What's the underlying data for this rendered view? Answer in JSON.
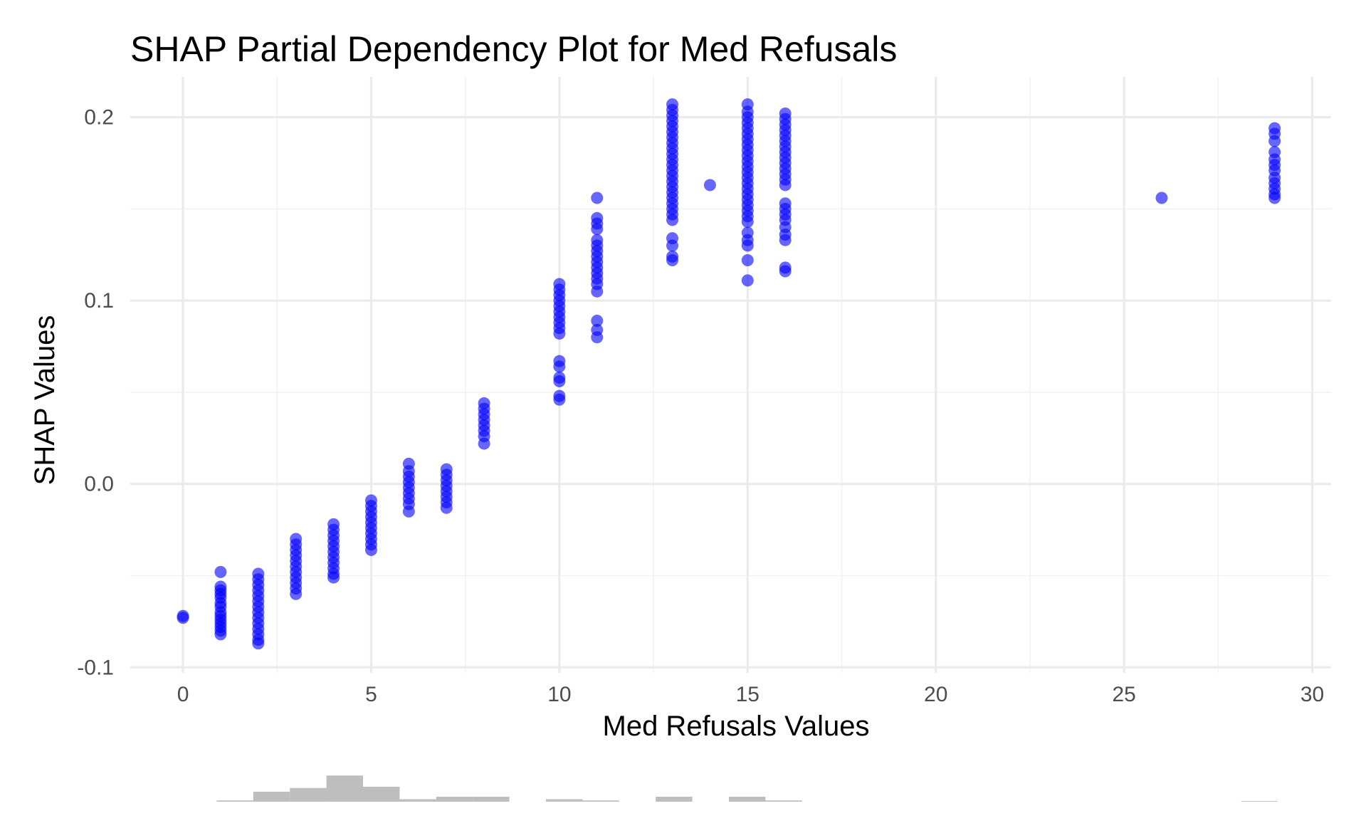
{
  "chart_data": {
    "type": "scatter",
    "title": "SHAP Partial Dependency Plot for Med Refusals",
    "xlabel": "Med Refusals Values",
    "ylabel": "SHAP Values",
    "xlim": [
      -1.4,
      30.5
    ],
    "ylim": [
      -0.103,
      0.222
    ],
    "x_ticks": [
      {
        "value": 0,
        "label": "0"
      },
      {
        "value": 5,
        "label": "5"
      },
      {
        "value": 10,
        "label": "10"
      },
      {
        "value": 15,
        "label": "15"
      },
      {
        "value": 20,
        "label": "20"
      },
      {
        "value": 25,
        "label": "25"
      },
      {
        "value": 30,
        "label": "30"
      }
    ],
    "y_ticks": [
      {
        "value": -0.1,
        "label": "-0.1"
      },
      {
        "value": 0.0,
        "label": "0.0"
      },
      {
        "value": 0.1,
        "label": "0.1"
      },
      {
        "value": 0.2,
        "label": "0.2"
      }
    ],
    "grid": true,
    "point_color": "#0000ff",
    "point_opacity": 0.6,
    "series": [
      {
        "points": [
          {
            "x": 0,
            "y": -0.072
          },
          {
            "x": 0,
            "y": -0.073
          },
          {
            "x": 1,
            "y": -0.048
          },
          {
            "x": 1,
            "y": -0.056
          },
          {
            "x": 1,
            "y": -0.058
          },
          {
            "x": 1,
            "y": -0.06
          },
          {
            "x": 1,
            "y": -0.062
          },
          {
            "x": 1,
            "y": -0.065
          },
          {
            "x": 1,
            "y": -0.067
          },
          {
            "x": 1,
            "y": -0.07
          },
          {
            "x": 1,
            "y": -0.072
          },
          {
            "x": 1,
            "y": -0.074
          },
          {
            "x": 1,
            "y": -0.076
          },
          {
            "x": 1,
            "y": -0.078
          },
          {
            "x": 1,
            "y": -0.08
          },
          {
            "x": 1,
            "y": -0.082
          },
          {
            "x": 2,
            "y": -0.049
          },
          {
            "x": 2,
            "y": -0.052
          },
          {
            "x": 2,
            "y": -0.055
          },
          {
            "x": 2,
            "y": -0.058
          },
          {
            "x": 2,
            "y": -0.061
          },
          {
            "x": 2,
            "y": -0.064
          },
          {
            "x": 2,
            "y": -0.067
          },
          {
            "x": 2,
            "y": -0.07
          },
          {
            "x": 2,
            "y": -0.073
          },
          {
            "x": 2,
            "y": -0.076
          },
          {
            "x": 2,
            "y": -0.079
          },
          {
            "x": 2,
            "y": -0.082
          },
          {
            "x": 2,
            "y": -0.085
          },
          {
            "x": 2,
            "y": -0.087
          },
          {
            "x": 3,
            "y": -0.03
          },
          {
            "x": 3,
            "y": -0.033
          },
          {
            "x": 3,
            "y": -0.036
          },
          {
            "x": 3,
            "y": -0.039
          },
          {
            "x": 3,
            "y": -0.042
          },
          {
            "x": 3,
            "y": -0.045
          },
          {
            "x": 3,
            "y": -0.048
          },
          {
            "x": 3,
            "y": -0.051
          },
          {
            "x": 3,
            "y": -0.054
          },
          {
            "x": 3,
            "y": -0.057
          },
          {
            "x": 3,
            "y": -0.06
          },
          {
            "x": 4,
            "y": -0.022
          },
          {
            "x": 4,
            "y": -0.025
          },
          {
            "x": 4,
            "y": -0.028
          },
          {
            "x": 4,
            "y": -0.031
          },
          {
            "x": 4,
            "y": -0.034
          },
          {
            "x": 4,
            "y": -0.037
          },
          {
            "x": 4,
            "y": -0.04
          },
          {
            "x": 4,
            "y": -0.043
          },
          {
            "x": 4,
            "y": -0.046
          },
          {
            "x": 4,
            "y": -0.049
          },
          {
            "x": 4,
            "y": -0.051
          },
          {
            "x": 5,
            "y": -0.009
          },
          {
            "x": 5,
            "y": -0.012
          },
          {
            "x": 5,
            "y": -0.015
          },
          {
            "x": 5,
            "y": -0.018
          },
          {
            "x": 5,
            "y": -0.021
          },
          {
            "x": 5,
            "y": -0.024
          },
          {
            "x": 5,
            "y": -0.027
          },
          {
            "x": 5,
            "y": -0.03
          },
          {
            "x": 5,
            "y": -0.033
          },
          {
            "x": 5,
            "y": -0.036
          },
          {
            "x": 6,
            "y": 0.011
          },
          {
            "x": 6,
            "y": 0.007
          },
          {
            "x": 6,
            "y": 0.004
          },
          {
            "x": 6,
            "y": 0.001
          },
          {
            "x": 6,
            "y": -0.002
          },
          {
            "x": 6,
            "y": -0.005
          },
          {
            "x": 6,
            "y": -0.008
          },
          {
            "x": 6,
            "y": -0.011
          },
          {
            "x": 6,
            "y": -0.015
          },
          {
            "x": 7,
            "y": 0.008
          },
          {
            "x": 7,
            "y": 0.005
          },
          {
            "x": 7,
            "y": 0.002
          },
          {
            "x": 7,
            "y": -0.001
          },
          {
            "x": 7,
            "y": -0.004
          },
          {
            "x": 7,
            "y": -0.007
          },
          {
            "x": 7,
            "y": -0.01
          },
          {
            "x": 7,
            "y": -0.013
          },
          {
            "x": 8,
            "y": 0.044
          },
          {
            "x": 8,
            "y": 0.041
          },
          {
            "x": 8,
            "y": 0.038
          },
          {
            "x": 8,
            "y": 0.035
          },
          {
            "x": 8,
            "y": 0.032
          },
          {
            "x": 8,
            "y": 0.029
          },
          {
            "x": 8,
            "y": 0.026
          },
          {
            "x": 8,
            "y": 0.022
          },
          {
            "x": 10,
            "y": 0.109
          },
          {
            "x": 10,
            "y": 0.106
          },
          {
            "x": 10,
            "y": 0.103
          },
          {
            "x": 10,
            "y": 0.1
          },
          {
            "x": 10,
            "y": 0.097
          },
          {
            "x": 10,
            "y": 0.094
          },
          {
            "x": 10,
            "y": 0.091
          },
          {
            "x": 10,
            "y": 0.088
          },
          {
            "x": 10,
            "y": 0.085
          },
          {
            "x": 10,
            "y": 0.082
          },
          {
            "x": 10,
            "y": 0.067
          },
          {
            "x": 10,
            "y": 0.064
          },
          {
            "x": 10,
            "y": 0.058
          },
          {
            "x": 10,
            "y": 0.056
          },
          {
            "x": 10,
            "y": 0.048
          },
          {
            "x": 10,
            "y": 0.046
          },
          {
            "x": 11,
            "y": 0.156
          },
          {
            "x": 11,
            "y": 0.145
          },
          {
            "x": 11,
            "y": 0.142
          },
          {
            "x": 11,
            "y": 0.139
          },
          {
            "x": 11,
            "y": 0.133
          },
          {
            "x": 11,
            "y": 0.13
          },
          {
            "x": 11,
            "y": 0.127
          },
          {
            "x": 11,
            "y": 0.124
          },
          {
            "x": 11,
            "y": 0.121
          },
          {
            "x": 11,
            "y": 0.118
          },
          {
            "x": 11,
            "y": 0.115
          },
          {
            "x": 11,
            "y": 0.112
          },
          {
            "x": 11,
            "y": 0.109
          },
          {
            "x": 11,
            "y": 0.105
          },
          {
            "x": 11,
            "y": 0.089
          },
          {
            "x": 11,
            "y": 0.084
          },
          {
            "x": 11,
            "y": 0.08
          },
          {
            "x": 13,
            "y": 0.207
          },
          {
            "x": 13,
            "y": 0.204
          },
          {
            "x": 13,
            "y": 0.201
          },
          {
            "x": 13,
            "y": 0.198
          },
          {
            "x": 13,
            "y": 0.195
          },
          {
            "x": 13,
            "y": 0.192
          },
          {
            "x": 13,
            "y": 0.189
          },
          {
            "x": 13,
            "y": 0.186
          },
          {
            "x": 13,
            "y": 0.183
          },
          {
            "x": 13,
            "y": 0.18
          },
          {
            "x": 13,
            "y": 0.177
          },
          {
            "x": 13,
            "y": 0.174
          },
          {
            "x": 13,
            "y": 0.171
          },
          {
            "x": 13,
            "y": 0.168
          },
          {
            "x": 13,
            "y": 0.165
          },
          {
            "x": 13,
            "y": 0.162
          },
          {
            "x": 13,
            "y": 0.159
          },
          {
            "x": 13,
            "y": 0.156
          },
          {
            "x": 13,
            "y": 0.153
          },
          {
            "x": 13,
            "y": 0.15
          },
          {
            "x": 13,
            "y": 0.147
          },
          {
            "x": 13,
            "y": 0.144
          },
          {
            "x": 13,
            "y": 0.134
          },
          {
            "x": 13,
            "y": 0.13
          },
          {
            "x": 13,
            "y": 0.124
          },
          {
            "x": 13,
            "y": 0.122
          },
          {
            "x": 14,
            "y": 0.163
          },
          {
            "x": 15,
            "y": 0.207
          },
          {
            "x": 15,
            "y": 0.203
          },
          {
            "x": 15,
            "y": 0.2
          },
          {
            "x": 15,
            "y": 0.197
          },
          {
            "x": 15,
            "y": 0.194
          },
          {
            "x": 15,
            "y": 0.191
          },
          {
            "x": 15,
            "y": 0.188
          },
          {
            "x": 15,
            "y": 0.185
          },
          {
            "x": 15,
            "y": 0.182
          },
          {
            "x": 15,
            "y": 0.179
          },
          {
            "x": 15,
            "y": 0.176
          },
          {
            "x": 15,
            "y": 0.173
          },
          {
            "x": 15,
            "y": 0.17
          },
          {
            "x": 15,
            "y": 0.167
          },
          {
            "x": 15,
            "y": 0.164
          },
          {
            "x": 15,
            "y": 0.161
          },
          {
            "x": 15,
            "y": 0.158
          },
          {
            "x": 15,
            "y": 0.155
          },
          {
            "x": 15,
            "y": 0.152
          },
          {
            "x": 15,
            "y": 0.149
          },
          {
            "x": 15,
            "y": 0.146
          },
          {
            "x": 15,
            "y": 0.143
          },
          {
            "x": 15,
            "y": 0.137
          },
          {
            "x": 15,
            "y": 0.133
          },
          {
            "x": 15,
            "y": 0.13
          },
          {
            "x": 15,
            "y": 0.122
          },
          {
            "x": 15,
            "y": 0.111
          },
          {
            "x": 16,
            "y": 0.202
          },
          {
            "x": 16,
            "y": 0.199
          },
          {
            "x": 16,
            "y": 0.196
          },
          {
            "x": 16,
            "y": 0.193
          },
          {
            "x": 16,
            "y": 0.19
          },
          {
            "x": 16,
            "y": 0.187
          },
          {
            "x": 16,
            "y": 0.184
          },
          {
            "x": 16,
            "y": 0.181
          },
          {
            "x": 16,
            "y": 0.178
          },
          {
            "x": 16,
            "y": 0.175
          },
          {
            "x": 16,
            "y": 0.172
          },
          {
            "x": 16,
            "y": 0.169
          },
          {
            "x": 16,
            "y": 0.166
          },
          {
            "x": 16,
            "y": 0.163
          },
          {
            "x": 16,
            "y": 0.153
          },
          {
            "x": 16,
            "y": 0.15
          },
          {
            "x": 16,
            "y": 0.147
          },
          {
            "x": 16,
            "y": 0.144
          },
          {
            "x": 16,
            "y": 0.14
          },
          {
            "x": 16,
            "y": 0.136
          },
          {
            "x": 16,
            "y": 0.133
          },
          {
            "x": 16,
            "y": 0.118
          },
          {
            "x": 16,
            "y": 0.116
          },
          {
            "x": 26,
            "y": 0.156
          },
          {
            "x": 29,
            "y": 0.194
          },
          {
            "x": 29,
            "y": 0.191
          },
          {
            "x": 29,
            "y": 0.187
          },
          {
            "x": 29,
            "y": 0.181
          },
          {
            "x": 29,
            "y": 0.177
          },
          {
            "x": 29,
            "y": 0.174
          },
          {
            "x": 29,
            "y": 0.171
          },
          {
            "x": 29,
            "y": 0.167
          },
          {
            "x": 29,
            "y": 0.164
          },
          {
            "x": 29,
            "y": 0.161
          },
          {
            "x": 29,
            "y": 0.158
          },
          {
            "x": 29,
            "y": 0.156
          }
        ]
      }
    ],
    "histogram": {
      "bin_width": 1,
      "bin_starts": [
        1,
        2,
        3,
        4,
        5,
        6,
        7,
        8,
        10,
        11,
        13,
        15,
        16,
        29
      ],
      "counts": [
        1,
        8,
        11,
        21,
        12,
        2,
        4,
        4,
        2,
        1,
        4,
        4,
        1,
        0.5
      ],
      "color": "#bebebe"
    }
  }
}
